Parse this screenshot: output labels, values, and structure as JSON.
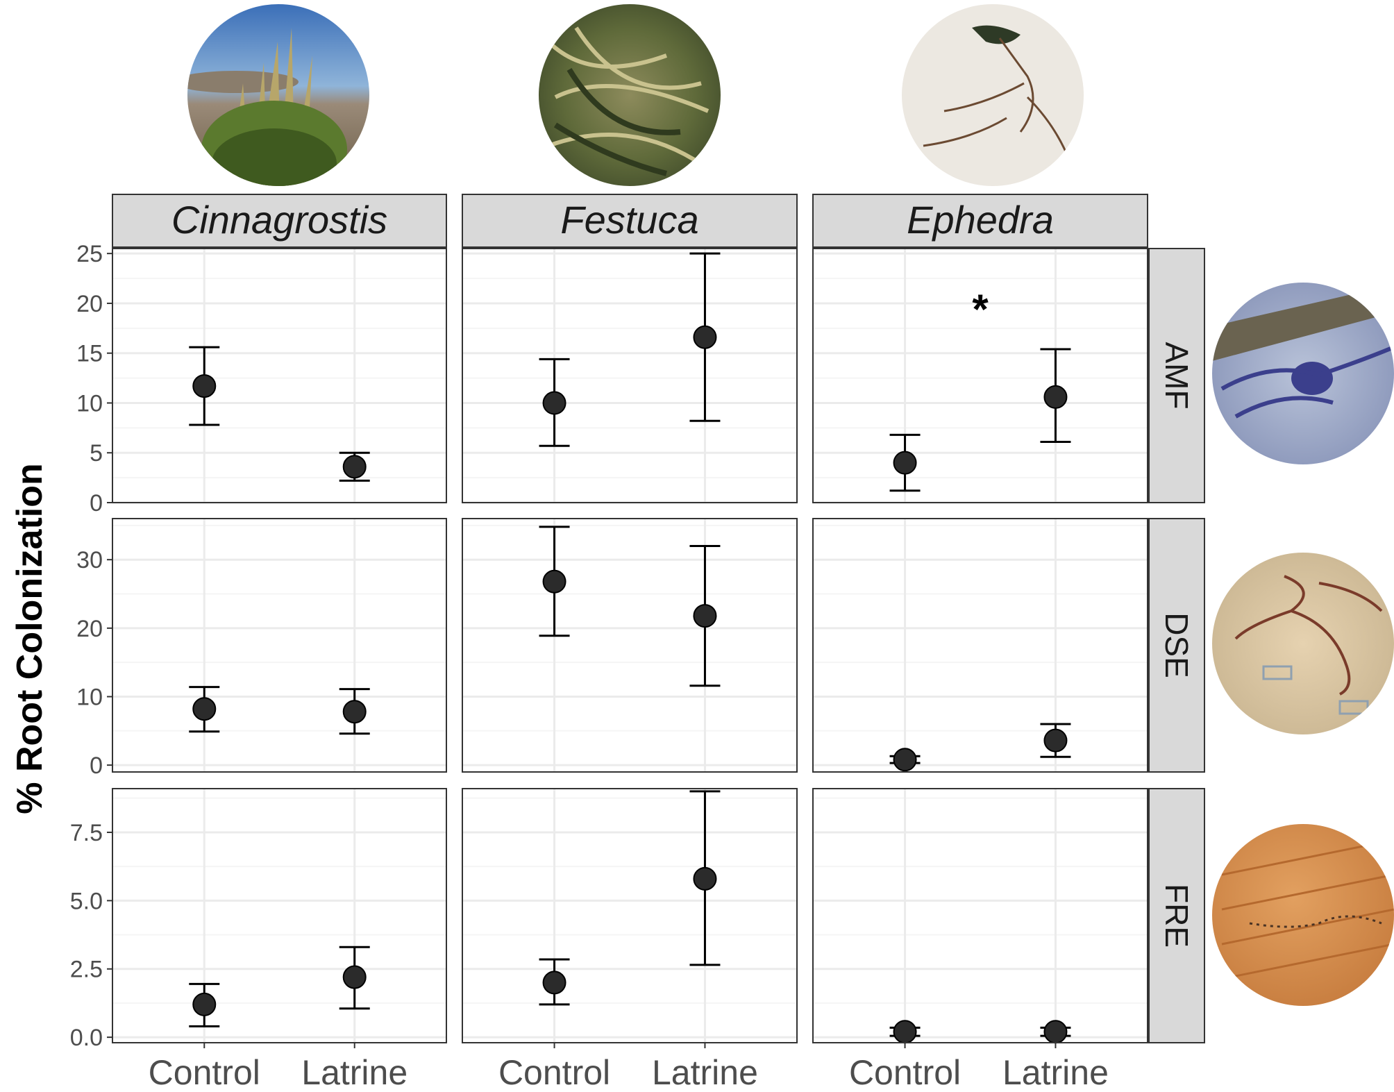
{
  "ylabel": "% Root Colonization",
  "chart_data": {
    "type": "scatter",
    "plot_style": "point with error bars, facet grid",
    "ylabel": "% Root Colonization",
    "categories": [
      "Control",
      "Latrine"
    ],
    "columns": [
      "Cinnagrostis",
      "Festuca",
      "Ephedra"
    ],
    "rows": [
      {
        "name": "AMF",
        "ylim": [
          0,
          25.5
        ],
        "yticks": [
          0,
          5,
          10,
          15,
          20,
          25
        ],
        "ytick_labels": [
          "0",
          "5",
          "10",
          "15",
          "20",
          "25"
        ],
        "panels": [
          {
            "plant": "Cinnagrostis",
            "mean": [
              11.7,
              3.6
            ],
            "lower": [
              7.8,
              2.2
            ],
            "upper": [
              15.6,
              5.0
            ],
            "annotation": ""
          },
          {
            "plant": "Festuca",
            "mean": [
              10.0,
              16.6
            ],
            "lower": [
              5.7,
              8.2
            ],
            "upper": [
              14.4,
              25.0
            ],
            "annotation": ""
          },
          {
            "plant": "Ephedra",
            "mean": [
              4.0,
              10.6
            ],
            "lower": [
              1.2,
              6.1
            ],
            "upper": [
              6.8,
              15.4
            ],
            "annotation": "*"
          }
        ]
      },
      {
        "name": "DSE",
        "ylim": [
          -1,
          36
        ],
        "yticks": [
          0,
          10,
          20,
          30
        ],
        "ytick_labels": [
          "0",
          "10",
          "20",
          "30"
        ],
        "panels": [
          {
            "plant": "Cinnagrostis",
            "mean": [
              8.2,
              7.8
            ],
            "lower": [
              4.9,
              4.6
            ],
            "upper": [
              11.4,
              11.1
            ],
            "annotation": ""
          },
          {
            "plant": "Festuca",
            "mean": [
              26.8,
              21.8
            ],
            "lower": [
              18.9,
              11.6
            ],
            "upper": [
              34.8,
              32.0
            ],
            "annotation": ""
          },
          {
            "plant": "Ephedra",
            "mean": [
              0.8,
              3.6
            ],
            "lower": [
              0.3,
              1.2
            ],
            "upper": [
              1.3,
              6.0
            ],
            "annotation": ""
          }
        ]
      },
      {
        "name": "FRE",
        "ylim": [
          -0.2,
          9.1
        ],
        "yticks": [
          0,
          2.5,
          5,
          7.5
        ],
        "ytick_labels": [
          "0.0",
          "2.5",
          "5.0",
          "7.5"
        ],
        "panels": [
          {
            "plant": "Cinnagrostis",
            "mean": [
              1.2,
              2.2
            ],
            "lower": [
              0.4,
              1.05
            ],
            "upper": [
              1.95,
              3.3
            ],
            "annotation": ""
          },
          {
            "plant": "Festuca",
            "mean": [
              2.0,
              5.8
            ],
            "lower": [
              1.2,
              2.65
            ],
            "upper": [
              2.85,
              9.0
            ],
            "annotation": ""
          },
          {
            "plant": "Ephedra",
            "mean": [
              0.2,
              0.2
            ],
            "lower": [
              0.05,
              0.05
            ],
            "upper": [
              0.35,
              0.35
            ],
            "annotation": ""
          }
        ]
      }
    ],
    "grid": true,
    "legend": "none"
  },
  "colors": {
    "point_fill": "#2b2b2b",
    "strip_bg": "#d9d9d9",
    "grid_major": "#ebebeb",
    "grid_minor": "#f5f5f5",
    "axis_text": "#4d4d4d",
    "border": "#333333"
  },
  "images": [
    {
      "name": "cinnagrostis-photo",
      "type": "plant photo"
    },
    {
      "name": "festuca-photo",
      "type": "plant photo"
    },
    {
      "name": "ephedra-photo",
      "type": "plant photo"
    },
    {
      "name": "amf-micrograph",
      "type": "microscopy photo"
    },
    {
      "name": "dse-micrograph",
      "type": "microscopy photo"
    },
    {
      "name": "fre-micrograph",
      "type": "microscopy photo"
    }
  ]
}
